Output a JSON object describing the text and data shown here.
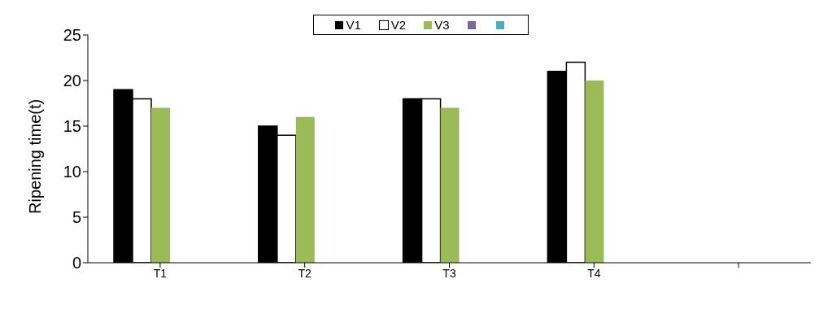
{
  "chart_data": {
    "type": "bar",
    "ylabel": "Ripening time(t)",
    "categories": [
      "T1",
      "T2",
      "T3",
      "T4",
      null
    ],
    "series": [
      {
        "name": "V1",
        "color": "#000000",
        "values": [
          19,
          15,
          18,
          21,
          null
        ]
      },
      {
        "name": "V2",
        "color": "#ffffff",
        "values": [
          18,
          14,
          18,
          22,
          null
        ]
      },
      {
        "name": "V3",
        "color": "#9bbb59",
        "values": [
          17,
          16,
          17,
          20,
          null
        ]
      },
      {
        "color": "#8064a2",
        "values": [
          null,
          null,
          null,
          null,
          null
        ]
      },
      {
        "color": "#4bacc6",
        "values": [
          null,
          null,
          null,
          null,
          null
        ]
      }
    ],
    "ylim": [
      0,
      25
    ],
    "yticks": [
      0,
      5,
      10,
      15,
      20,
      25
    ],
    "grid": false,
    "legend": "top"
  }
}
